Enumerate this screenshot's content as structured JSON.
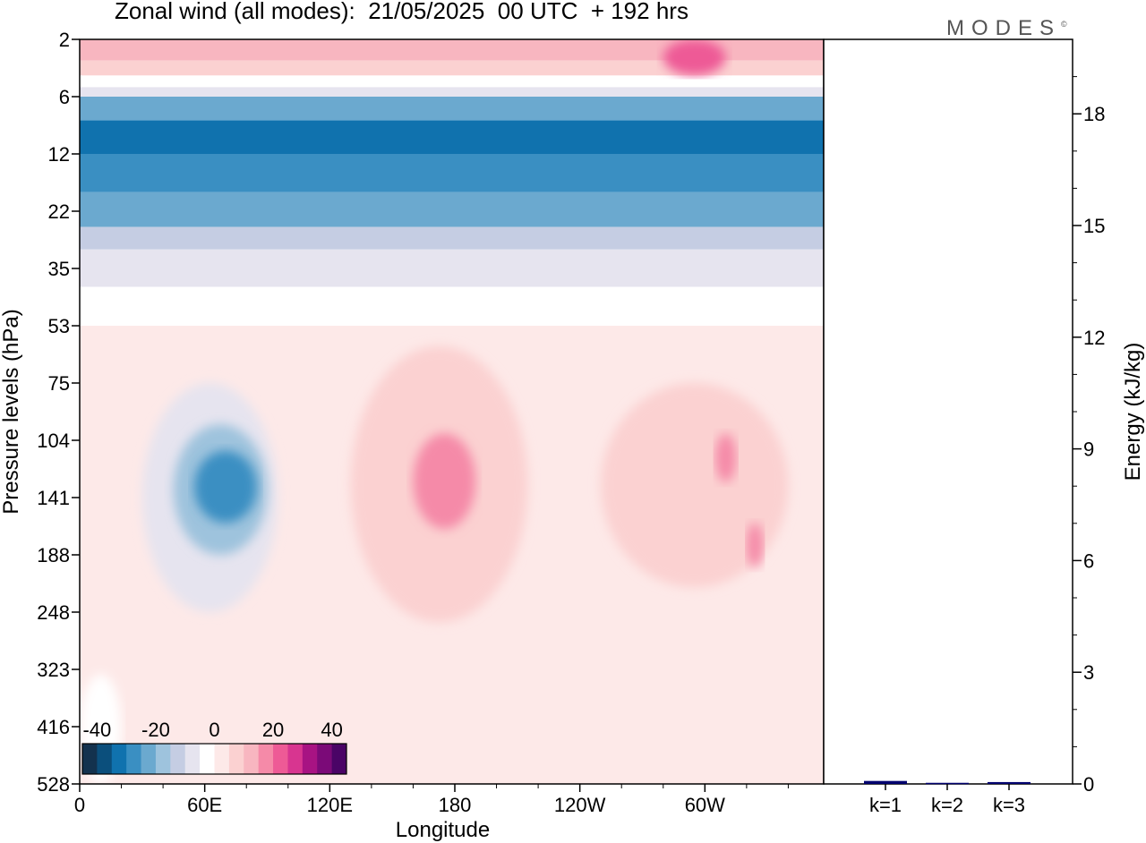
{
  "title": "Zonal wind (all modes):  21/05/2025  00 UTC  + 192 hrs",
  "logo_text": "MODES",
  "logo_mark": "©",
  "chart_data": [
    {
      "type": "heatmap",
      "xlabel": "Longitude",
      "ylabel": "Pressure levels (hPa)",
      "x_ticks": [
        "0",
        "60E",
        "120E",
        "180",
        "120W",
        "60W"
      ],
      "x_tick_degrees": [
        0,
        60,
        120,
        180,
        240,
        300
      ],
      "x_range_degrees": [
        0,
        357
      ],
      "y_ticks": [
        "2",
        "6",
        "12",
        "22",
        "35",
        "53",
        "75",
        "104",
        "141",
        "188",
        "248",
        "323",
        "416",
        "528"
      ],
      "y_scale": "model levels (top to bottom)",
      "colorbar": {
        "tick_labels": [
          "-40",
          "-20",
          "0",
          "20",
          "40"
        ],
        "tick_values": [
          -40,
          -20,
          0,
          20,
          40
        ],
        "range": [
          -45,
          45
        ],
        "step": 5,
        "colors": [
          "#13324e",
          "#0b4f7c",
          "#1072ae",
          "#3a8fc2",
          "#6ba9cf",
          "#9ec3dd",
          "#c5cde3",
          "#e6e4ef",
          "#ffffff",
          "#fde9e8",
          "#fbd1d1",
          "#f8b6c0",
          "#f58aa8",
          "#ee5a96",
          "#d83590",
          "#a81383",
          "#7b0a78",
          "#4a0466"
        ]
      },
      "bands": [
        {
          "p_top": 2,
          "p_bottom": 3,
          "value": 12
        },
        {
          "p_top": 3,
          "p_bottom": 4,
          "value": 5
        },
        {
          "p_top": 4,
          "p_bottom": 5,
          "value": -3
        },
        {
          "p_top": 5,
          "p_bottom": 6,
          "value": -10
        },
        {
          "p_top": 6,
          "p_bottom": 8,
          "value": -25
        },
        {
          "p_top": 8,
          "p_bottom": 12,
          "value": -35
        },
        {
          "p_top": 12,
          "p_bottom": 18,
          "value": -30
        },
        {
          "p_top": 18,
          "p_bottom": 25,
          "value": -25
        },
        {
          "p_top": 25,
          "p_bottom": 30,
          "value": -15
        },
        {
          "p_top": 30,
          "p_bottom": 40,
          "value": -7
        },
        {
          "p_top": 40,
          "p_bottom": 53,
          "value": -3
        },
        {
          "p_top": 53,
          "p_bottom": 528,
          "value": 2
        }
      ],
      "features": [
        {
          "lon": [
            30,
            95
          ],
          "p": [
            75,
            248
          ],
          "value": -10
        },
        {
          "lon": [
            45,
            90
          ],
          "p": [
            95,
            188
          ],
          "value": -20
        },
        {
          "lon": [
            55,
            85
          ],
          "p": [
            110,
            160
          ],
          "value": -28
        },
        {
          "lon": [
            130,
            215
          ],
          "p": [
            60,
            260
          ],
          "value": 8
        },
        {
          "lon": [
            160,
            190
          ],
          "p": [
            100,
            165
          ],
          "value": 15
        },
        {
          "lon": [
            250,
            340
          ],
          "p": [
            75,
            220
          ],
          "value": 8
        },
        {
          "lon": [
            305,
            315
          ],
          "p": [
            100,
            130
          ],
          "value": 15
        },
        {
          "lon": [
            320,
            328
          ],
          "p": [
            160,
            200
          ],
          "value": 15
        },
        {
          "lon": [
            280,
            310
          ],
          "p": [
            2,
            4
          ],
          "value": 20
        },
        {
          "lon": [
            0,
            20
          ],
          "p": [
            330,
            528
          ],
          "value": -3
        }
      ]
    },
    {
      "type": "bar",
      "ylabel": "Energy (kJ/kg)",
      "categories": [
        "k=1",
        "k=2",
        "k=3"
      ],
      "values": [
        0.08,
        0.03,
        0.05
      ],
      "ylim": [
        0,
        20
      ],
      "y_ticks": [
        "0",
        "3",
        "6",
        "9",
        "12",
        "15",
        "18"
      ],
      "bar_color": "#00006e"
    }
  ]
}
